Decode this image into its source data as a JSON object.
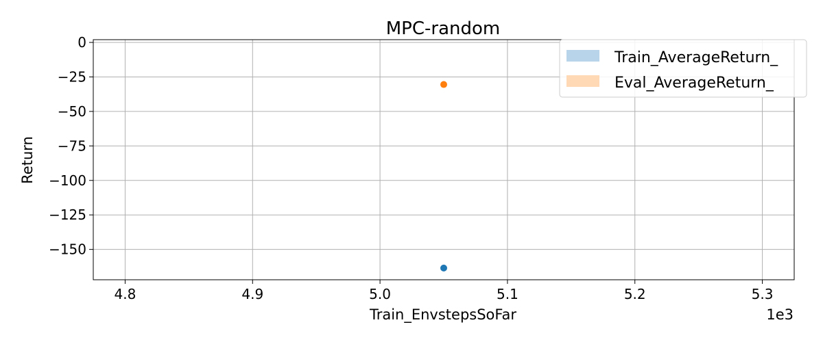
{
  "chart_data": {
    "type": "scatter",
    "title": "MPC-random",
    "xlabel": "Train_EnvstepsSoFar",
    "ylabel": "Return",
    "x_offset_label": "1e3",
    "xlim": [
      4.775,
      5.325
    ],
    "ylim": [
      -172,
      2
    ],
    "x_ticks": [
      4.8,
      4.9,
      5.0,
      5.1,
      5.2,
      5.3
    ],
    "x_tick_labels": [
      "4.8",
      "4.9",
      "5.0",
      "5.1",
      "5.2",
      "5.3"
    ],
    "y_ticks": [
      0,
      -25,
      -50,
      -75,
      -100,
      -125,
      -150
    ],
    "y_tick_labels": [
      "0",
      "−25",
      "−50",
      "−75",
      "−100",
      "−125",
      "−150"
    ],
    "grid": true,
    "legend_position": "top-right",
    "series": [
      {
        "name": "Train_AverageReturn_",
        "color": "#1f77b4",
        "legend_color": "#b8d4ea",
        "x": [
          5.05
        ],
        "y": [
          -163.5
        ]
      },
      {
        "name": "Eval_AverageReturn_",
        "color": "#ff7f0e",
        "legend_color": "#ffd8b5",
        "x": [
          5.05
        ],
        "y": [
          -30.5
        ]
      }
    ]
  }
}
